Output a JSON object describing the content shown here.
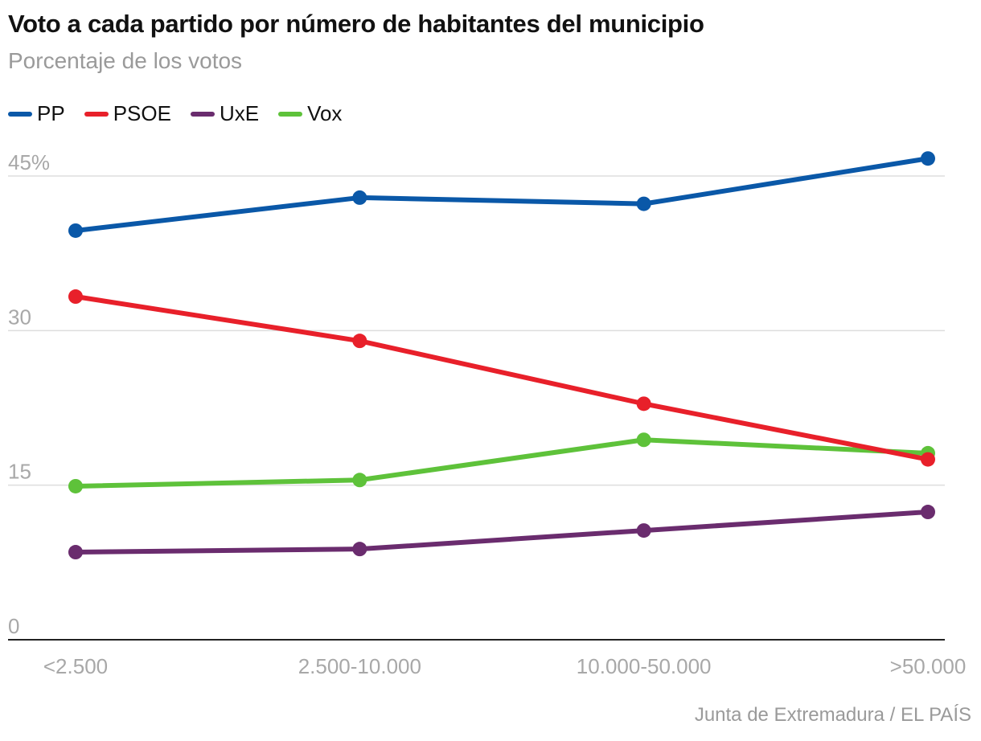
{
  "title": "Voto a cada partido por número de habitantes del municipio",
  "subtitle": "Porcentaje de los votos",
  "source": "Junta de Extremadura / EL PAÍS",
  "chart_data": {
    "type": "line",
    "title": "Voto a cada partido por número de habitantes del municipio",
    "subtitle": "Porcentaje de los votos",
    "xlabel": "",
    "ylabel": "Porcentaje de los votos",
    "categories": [
      "<2.500",
      "2.500-10.000",
      "10.000-50.000",
      ">50.000"
    ],
    "ylim": [
      0,
      45
    ],
    "yticks": [
      0,
      15,
      30,
      45
    ],
    "ytick_labels": [
      "0",
      "15",
      "30",
      "45%"
    ],
    "grid": true,
    "legend_position": "top-left",
    "series": [
      {
        "name": "PP",
        "color": "#0a58a8",
        "values": [
          39.7,
          42.9,
          42.3,
          46.7
        ]
      },
      {
        "name": "PSOE",
        "color": "#e8202a",
        "values": [
          33.3,
          29.0,
          22.9,
          17.5
        ]
      },
      {
        "name": "UxE",
        "color": "#6a2c6e",
        "values": [
          8.5,
          8.8,
          10.6,
          12.4
        ]
      },
      {
        "name": "Vox",
        "color": "#5ec23a",
        "values": [
          14.9,
          15.5,
          19.4,
          18.1
        ]
      }
    ]
  }
}
